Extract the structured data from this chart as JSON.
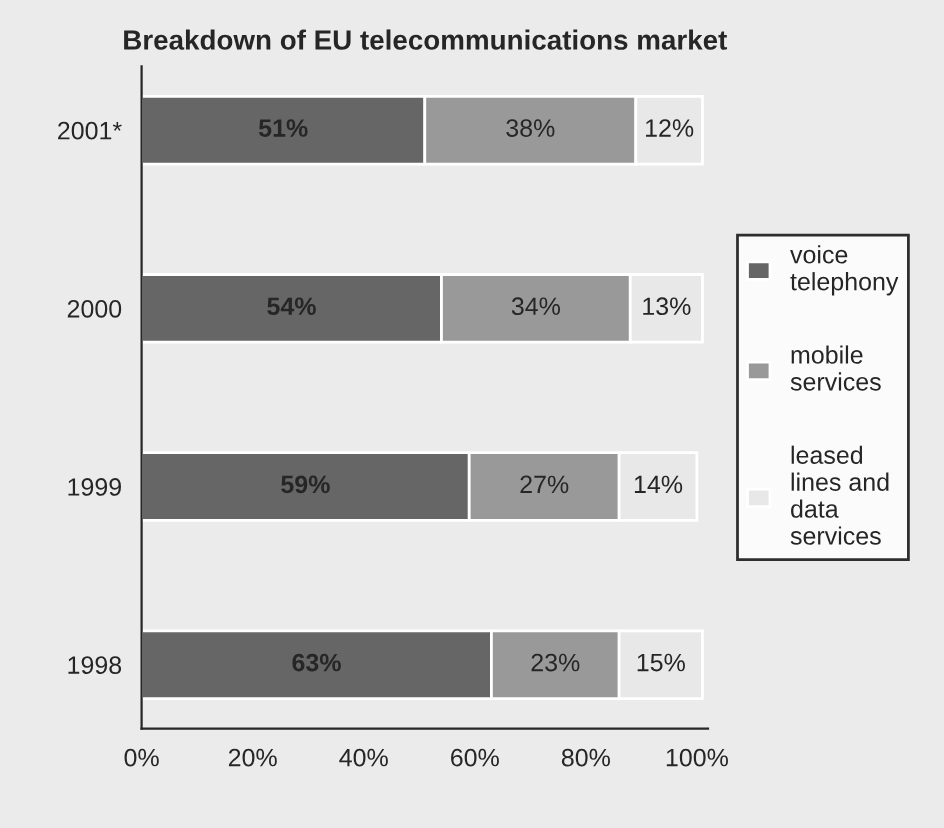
{
  "chart_data": {
    "type": "bar",
    "orientation": "horizontal",
    "stacked": true,
    "title": "Breakdown of EU telecommunications market",
    "categories": [
      "2001*",
      "2000",
      "1999",
      "1998"
    ],
    "series": [
      {
        "name": "voice telephony",
        "color": "#666666",
        "values": [
          51,
          54,
          59,
          63
        ],
        "value_labels": [
          "51%",
          "54%",
          "59%",
          "63%"
        ]
      },
      {
        "name": "mobile services",
        "color": "#999999",
        "values": [
          38,
          34,
          27,
          23
        ],
        "value_labels": [
          "38%",
          "34%",
          "27%",
          "23%"
        ]
      },
      {
        "name": "leased lines and data services",
        "color": "#e8e8e8",
        "values": [
          12,
          13,
          14,
          15
        ],
        "value_labels": [
          "12%",
          "13%",
          "14%",
          "15%"
        ]
      }
    ],
    "xlim": [
      0,
      102
    ],
    "xticks": [
      {
        "value": 0,
        "label": "0%"
      },
      {
        "value": 20,
        "label": "20%"
      },
      {
        "value": 40,
        "label": "40%"
      },
      {
        "value": 60,
        "label": "60%"
      },
      {
        "value": 80,
        "label": "80%"
      },
      {
        "value": 100,
        "label": "100%"
      }
    ],
    "grid": false,
    "legend": "right"
  }
}
